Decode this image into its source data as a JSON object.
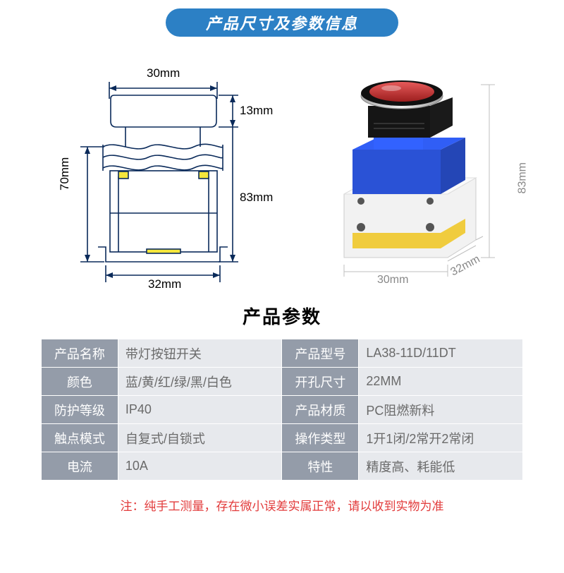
{
  "header": {
    "text": "产品尺寸及参数信息",
    "bg_color": "#2c80c5",
    "text_color": "#ffffff"
  },
  "schematic": {
    "dims": {
      "top_width": "30mm",
      "head_height": "13mm",
      "body_height": "83mm",
      "left_height": "70mm",
      "bottom_width": "32mm"
    },
    "outline_color": "#0a2a5a",
    "accent_color": "#f5e63c",
    "line_width": 1.6
  },
  "photo": {
    "dims": {
      "height": "83mm",
      "width1": "30mm",
      "width2": "32mm"
    },
    "colors": {
      "cap_red": "#c22727",
      "bezel": "#d7d7d7",
      "body_black": "#151515",
      "module_blue": "#2a52d6",
      "base_yellow": "#f0cc3e",
      "clear": "#e8e8e8",
      "dim_text": "#888888",
      "dim_line": "#bfbfbf"
    }
  },
  "params_title": "产品参数",
  "table": {
    "label_bg": "#949ca9",
    "label_fg": "#ffffff",
    "val_bg": "#e7e9ed",
    "val_fg": "#6a6a6a",
    "rows": [
      [
        {
          "label": "产品名称",
          "value": "带灯按钮开关"
        },
        {
          "label": "产品型号",
          "value": "LA38-11D/11DT"
        }
      ],
      [
        {
          "label": "颜色",
          "value": "蓝/黄/红/绿/黑/白色"
        },
        {
          "label": "开孔尺寸",
          "value": "22MM"
        }
      ],
      [
        {
          "label": "防护等级",
          "value": "IP40"
        },
        {
          "label": "产品材质",
          "value": "PC阻燃新料"
        }
      ],
      [
        {
          "label": "触点模式",
          "value": "自复式/自锁式"
        },
        {
          "label": "操作类型",
          "value": "1开1闭/2常开2常闭"
        }
      ],
      [
        {
          "label": "电流",
          "value": "10A"
        },
        {
          "label": "特性",
          "value": "精度高、耗能低"
        }
      ]
    ]
  },
  "footnote": {
    "text": "注：纯手工测量，存在微小误差实属正常，请以收到实物为准",
    "color": "#e23b3b"
  }
}
